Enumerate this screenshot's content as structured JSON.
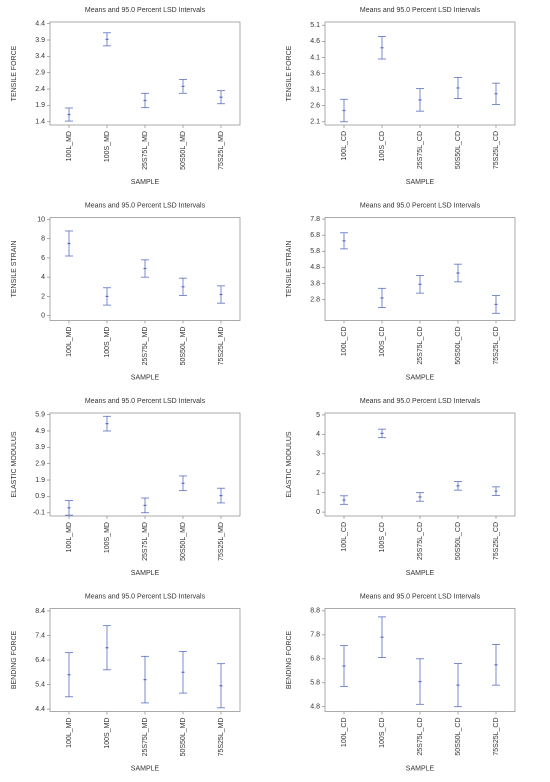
{
  "chart_data": [
    {
      "type": "errorbar",
      "title": "Means and 95.0 Percent LSD Intervals",
      "x_label": "SAMPLE",
      "y_label": "TENSILE FORCE",
      "categories": [
        "100L_MD",
        "100S_MD",
        "25S75L_MD",
        "50S50L_MD",
        "75S25L_MD"
      ],
      "values": [
        1.62,
        3.92,
        2.05,
        2.48,
        2.15
      ],
      "errors": [
        0.2,
        0.2,
        0.22,
        0.21,
        0.2
      ],
      "ylim": [
        1.3,
        4.45
      ],
      "yticks": [
        1.4,
        1.9,
        2.4,
        2.9,
        3.4,
        3.9,
        4.4
      ],
      "color": "#5b6fc4"
    },
    {
      "type": "errorbar",
      "title": "Means and 95.0 Percent LSD Intervals",
      "x_label": "SAMPLE",
      "y_label": "TENSILE FORCE",
      "categories": [
        "100L_CD",
        "100S_CD",
        "25S75L_CD",
        "50S50L_CD",
        "75S25L_CD"
      ],
      "values": [
        2.45,
        4.4,
        2.78,
        3.15,
        2.97
      ],
      "errors": [
        0.35,
        0.35,
        0.35,
        0.33,
        0.33
      ],
      "ylim": [
        2.0,
        5.2
      ],
      "yticks": [
        2.1,
        2.6,
        3.1,
        3.6,
        4.1,
        4.6,
        5.1
      ],
      "color": "#5b6fc4"
    },
    {
      "type": "errorbar",
      "title": "Means and 95.0 Percent LSD Intervals",
      "x_label": "SAMPLE",
      "y_label": "TENSILE STRAIN",
      "categories": [
        "100L_MD",
        "100S_MD",
        "25S75L_MD",
        "50S50L_MD",
        "75S25L_MD"
      ],
      "values": [
        7.5,
        2.0,
        4.9,
        3.0,
        2.2
      ],
      "errors": [
        1.3,
        0.9,
        0.9,
        0.9,
        0.9
      ],
      "ylim": [
        -0.5,
        10.2
      ],
      "yticks": [
        0,
        2,
        4,
        6,
        8,
        10
      ],
      "color": "#5b6fc4"
    },
    {
      "type": "errorbar",
      "title": "Means and 95.0 Percent LSD Intervals",
      "x_label": "SAMPLE",
      "y_label": "TENSILE STRAIN",
      "categories": [
        "100L_CD",
        "100S_CD",
        "25S75L_CD",
        "50S50L_CD",
        "75S25L_CD"
      ],
      "values": [
        6.45,
        2.9,
        3.75,
        4.45,
        2.5
      ],
      "errors": [
        0.5,
        0.6,
        0.55,
        0.55,
        0.55
      ],
      "ylim": [
        1.5,
        7.9
      ],
      "yticks": [
        2.8,
        3.8,
        4.8,
        5.8,
        6.8,
        7.8
      ],
      "color": "#5b6fc4"
    },
    {
      "type": "errorbar",
      "title": "Means and 95.0 Percent LSD Intervals",
      "x_label": "SAMPLE",
      "y_label": "ELASTIC MODULUS",
      "categories": [
        "100L_MD",
        "100S_MD",
        "25S75L_MD",
        "50S50L_MD",
        "75S25L_MD"
      ],
      "values": [
        0.2,
        5.35,
        0.35,
        1.7,
        0.95
      ],
      "errors": [
        0.45,
        0.45,
        0.45,
        0.45,
        0.45
      ],
      "ylim": [
        -0.3,
        6.0
      ],
      "yticks": [
        -0.1,
        0.9,
        1.9,
        2.9,
        3.9,
        4.9,
        5.9
      ],
      "color": "#5b6fc4"
    },
    {
      "type": "errorbar",
      "title": "Means and 95.0 Percent LSD Intervals",
      "x_label": "SAMPLE",
      "y_label": "ELASTIC MODULUS",
      "categories": [
        "100L_CD",
        "100S_CD",
        "25S75L_CD",
        "50S50L_CD",
        "75S25L_CD"
      ],
      "values": [
        0.62,
        4.05,
        0.78,
        1.35,
        1.08
      ],
      "errors": [
        0.22,
        0.22,
        0.22,
        0.22,
        0.22
      ],
      "ylim": [
        -0.2,
        5.1
      ],
      "yticks": [
        0,
        1,
        2,
        3,
        4,
        5
      ],
      "color": "#5b6fc4"
    },
    {
      "type": "errorbar",
      "title": "Means and 95.0 Percent LSD Intervals",
      "x_label": "SAMPLE",
      "y_label": "BENDING FORCE",
      "categories": [
        "100L_MD",
        "100S_MD",
        "25S75L_MD",
        "50S50L_MD",
        "75S25L_MD"
      ],
      "values": [
        5.8,
        6.9,
        5.6,
        5.9,
        5.35
      ],
      "errors": [
        0.9,
        0.9,
        0.95,
        0.85,
        0.9
      ],
      "ylim": [
        4.3,
        8.5
      ],
      "yticks": [
        4.4,
        5.4,
        6.4,
        7.4,
        8.4
      ],
      "color": "#5b6fc4"
    },
    {
      "type": "errorbar",
      "title": "Means and 95.0 Percent LSD Intervals",
      "x_label": "SAMPLE",
      "y_label": "BENDING FORCE",
      "categories": [
        "100L_CD",
        "100S_CD",
        "25S75L_CD",
        "50S50L_CD",
        "75S25L_CD"
      ],
      "values": [
        6.5,
        7.7,
        5.85,
        5.7,
        6.55
      ],
      "errors": [
        0.85,
        0.85,
        0.95,
        0.9,
        0.85
      ],
      "ylim": [
        4.6,
        8.9
      ],
      "yticks": [
        4.8,
        5.8,
        6.8,
        7.8,
        8.8
      ],
      "color": "#5b6fc4"
    }
  ]
}
